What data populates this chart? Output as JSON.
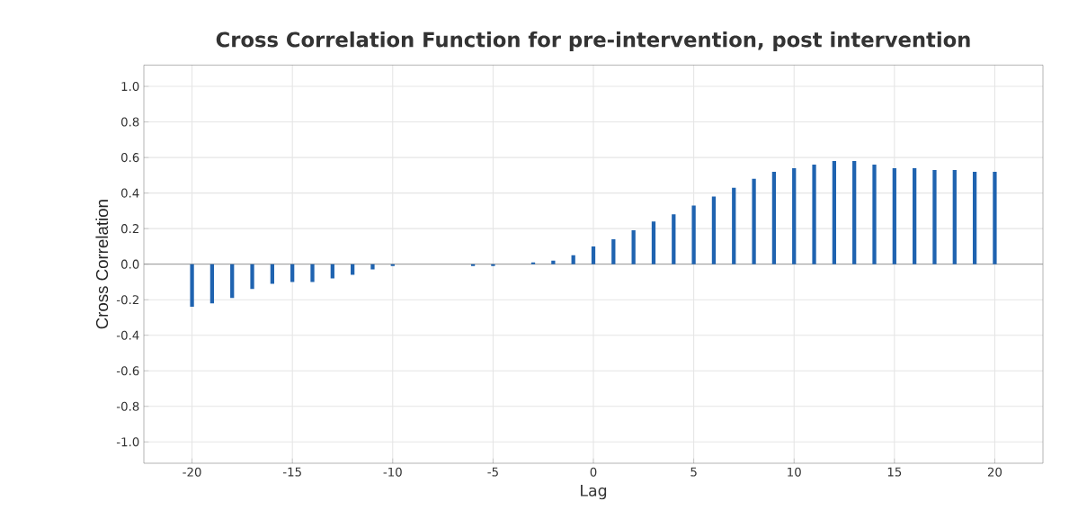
{
  "chart_data": {
    "type": "bar",
    "title": "Cross Correlation Function for pre-intervention, post intervention",
    "xlabel": "Lag",
    "ylabel": "Cross Correlation",
    "x": [
      -20,
      -19,
      -18,
      -17,
      -16,
      -15,
      -14,
      -13,
      -12,
      -11,
      -10,
      -9,
      -8,
      -7,
      -6,
      -5,
      -4,
      -3,
      -2,
      -1,
      0,
      1,
      2,
      3,
      4,
      5,
      6,
      7,
      8,
      9,
      10,
      11,
      12,
      13,
      14,
      15,
      16,
      17,
      18,
      19,
      20
    ],
    "values": [
      -0.24,
      -0.22,
      -0.19,
      -0.14,
      -0.11,
      -0.1,
      -0.1,
      -0.08,
      -0.06,
      -0.03,
      -0.01,
      0.0,
      0.0,
      0.0,
      -0.01,
      -0.01,
      0.0,
      0.01,
      0.02,
      0.05,
      0.1,
      0.14,
      0.19,
      0.24,
      0.28,
      0.33,
      0.38,
      0.43,
      0.48,
      0.52,
      0.54,
      0.56,
      0.58,
      0.58,
      0.56,
      0.54,
      0.54,
      0.53,
      0.53,
      0.52,
      0.52
    ],
    "color": "#1f63b0",
    "xlim": [
      -22.4,
      22.4
    ],
    "ylim": [
      -1.12,
      1.12
    ],
    "xticks": [
      -20,
      -15,
      -10,
      -5,
      0,
      5,
      10,
      15,
      20
    ],
    "yticks": [
      {
        "value": -1,
        "label": "-1.0"
      },
      {
        "value": -0.8,
        "label": "-0.8"
      },
      {
        "value": -0.6,
        "label": "-0.6"
      },
      {
        "value": -0.4,
        "label": "-0.4"
      },
      {
        "value": -0.2,
        "label": "-0.2"
      },
      {
        "value": 0,
        "label": "0.0"
      },
      {
        "value": 0.2,
        "label": "0.2"
      },
      {
        "value": 0.4,
        "label": "0.4"
      },
      {
        "value": 0.6,
        "label": "0.6"
      },
      {
        "value": 0.8,
        "label": "0.8"
      },
      {
        "value": 1,
        "label": "1.0"
      }
    ],
    "grid": true,
    "ref_lines": [
      {
        "axis": "y",
        "value": 0,
        "color": "#8c8c8c"
      }
    ]
  }
}
